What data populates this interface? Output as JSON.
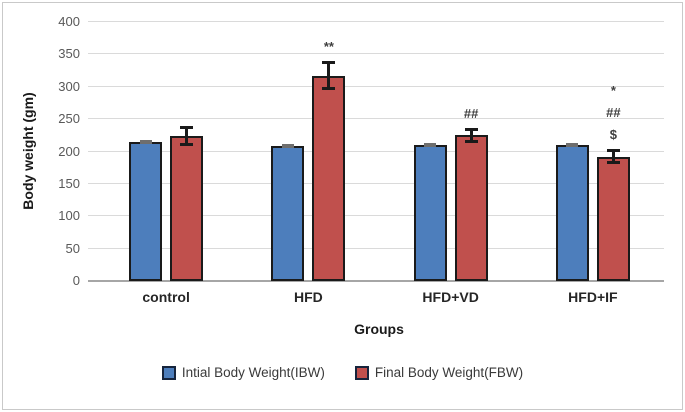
{
  "chart_data": {
    "type": "bar",
    "title": "",
    "xlabel": "Groups",
    "ylabel": "Body weight (gm)",
    "ylim": [
      0,
      400
    ],
    "yticks": [
      0,
      50,
      100,
      150,
      200,
      250,
      300,
      350,
      400
    ],
    "grid": true,
    "legend_position": "bottom",
    "categories": [
      "control",
      "HFD",
      "HFD+VD",
      "HFD+IF"
    ],
    "series": [
      {
        "name": "Intial Body Weight(IBW)",
        "color": "#4d7ebc",
        "values": [
          215,
          209,
          210,
          210
        ],
        "errors": [
          2,
          2,
          2,
          2
        ],
        "error_style": "gray-cap"
      },
      {
        "name": "Final Body Weight(FBW)",
        "color": "#c0504d",
        "values": [
          224,
          317,
          225,
          192
        ],
        "errors": [
          13,
          20,
          9,
          9
        ],
        "error_style": "black-bar"
      }
    ],
    "annotations": [
      {
        "category": "HFD",
        "lines": [
          "**"
        ]
      },
      {
        "category": "HFD+VD",
        "lines": [
          "##"
        ]
      },
      {
        "category": "HFD+IF",
        "lines": [
          "*",
          "##",
          "$"
        ]
      }
    ]
  },
  "colors": {
    "gridline": "#dadada",
    "baseline": "#a6a6a6",
    "bar_border": "#1a1a1a",
    "tick_label": "#595959",
    "frame_border": "#c9c9c9",
    "error_blue_cap": "#6e6e6e",
    "error_black": "#1a1a1a"
  }
}
